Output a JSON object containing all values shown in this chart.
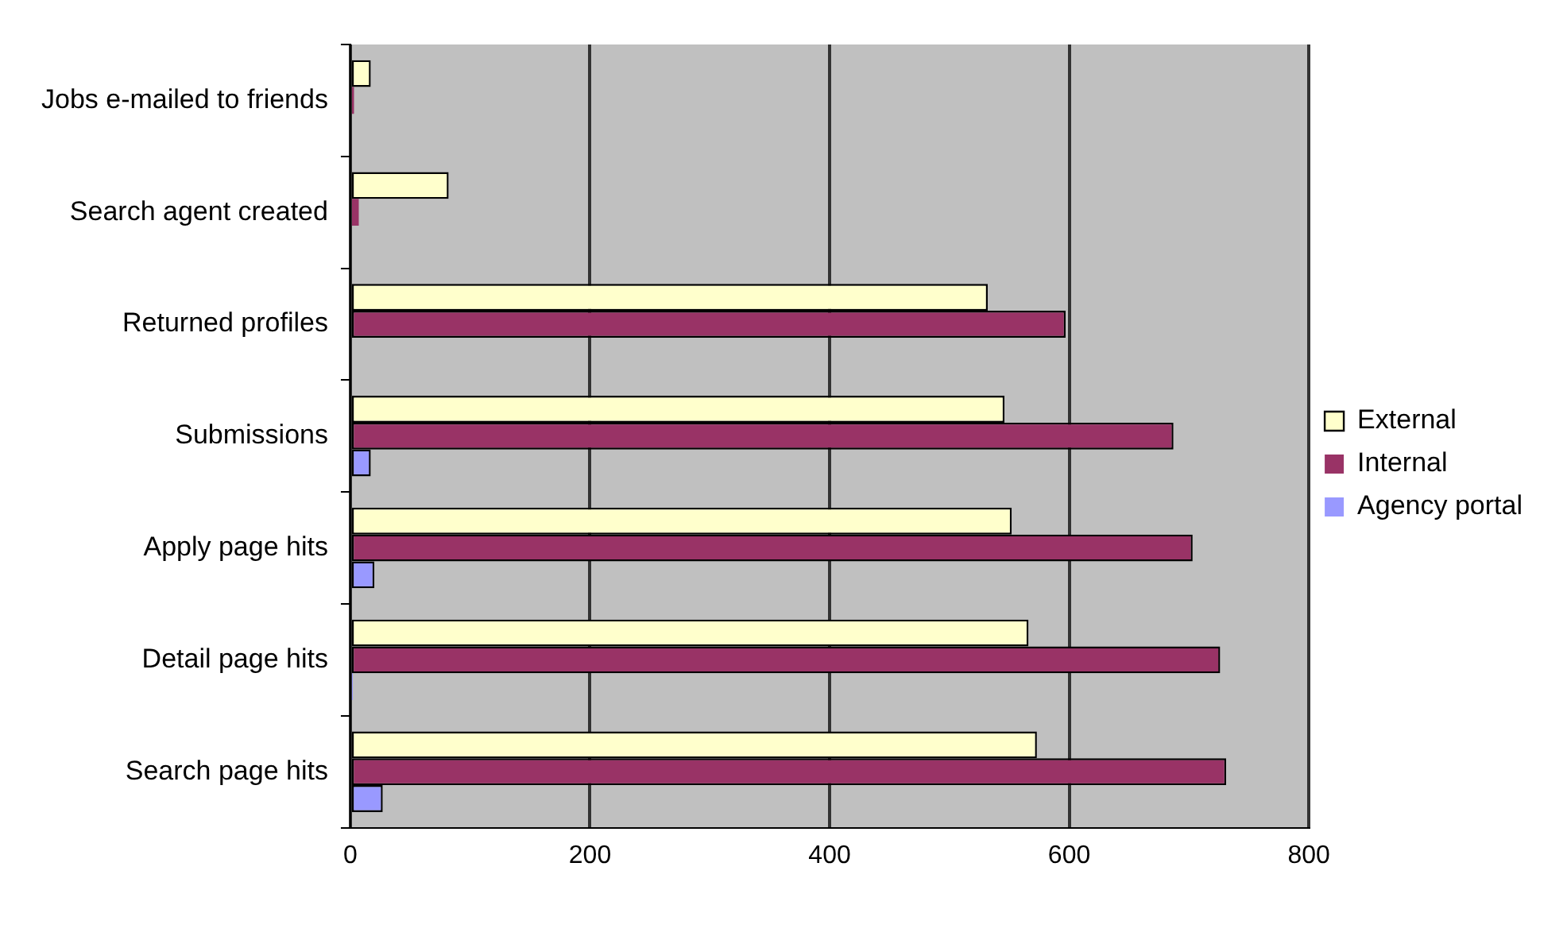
{
  "chart_data": {
    "type": "bar",
    "orientation": "horizontal",
    "categories": [
      "Jobs e-mailed to friends",
      "Search agent created",
      "Returned profiles",
      "Submissions",
      "Apply page hits",
      "Detail page hits",
      "Search page hits"
    ],
    "series": [
      {
        "name": "External",
        "color": "#ffffcc",
        "values": [
          17,
          82,
          532,
          546,
          552,
          566,
          573
        ]
      },
      {
        "name": "Internal",
        "color": "#993366",
        "values": [
          3,
          7,
          597,
          687,
          703,
          726,
          731
        ]
      },
      {
        "name": "Agency portal",
        "color": "#9999ff",
        "values": [
          0,
          0,
          0,
          17,
          20,
          2,
          27
        ]
      }
    ],
    "xlim": [
      0,
      800
    ],
    "xticks": [
      0,
      200,
      400,
      600,
      800
    ],
    "grid": "x",
    "legend": "right"
  }
}
